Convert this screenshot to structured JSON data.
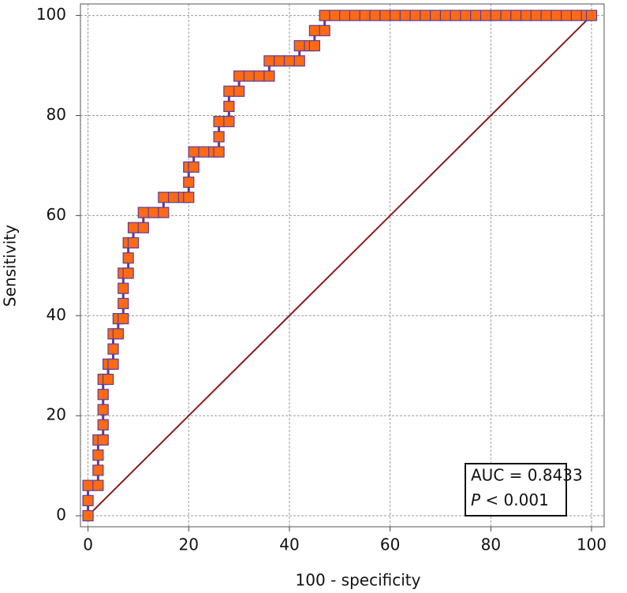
{
  "chart_data": {
    "type": "line",
    "xlabel": "100 - specificity",
    "ylabel": "Sensitivity",
    "xlim": [
      -1.5,
      102.5
    ],
    "ylim": [
      -2.2,
      102.3
    ],
    "xticks": [
      0,
      20,
      40,
      60,
      80,
      100
    ],
    "yticks": [
      0,
      20,
      40,
      60,
      80,
      100
    ],
    "grid": true,
    "annotation": {
      "auc": "AUC = 0.8433",
      "p_symbol": "P",
      "p_value": "< 0.001"
    },
    "reference_color": "#8b1a1a",
    "series": [
      {
        "color": "#5b3c9b",
        "marker_color": "#ff6a13",
        "x": [
          0,
          0,
          0,
          2,
          2,
          2,
          2,
          3,
          3,
          3,
          3,
          3,
          4,
          4,
          5,
          5,
          5,
          6,
          6,
          7,
          7,
          7,
          7,
          8,
          8,
          8,
          9,
          9,
          11,
          11,
          13,
          15,
          15,
          17,
          19,
          20,
          20,
          20,
          21,
          21,
          23,
          25,
          26,
          26,
          26,
          28,
          28,
          28,
          30,
          30,
          32,
          34,
          36,
          36,
          38,
          40,
          42,
          42,
          44,
          45,
          45,
          47,
          47,
          49,
          51,
          53,
          55,
          57,
          59,
          61,
          63,
          65,
          67,
          69,
          71,
          73,
          75,
          77,
          79,
          81,
          83,
          85,
          87,
          89,
          91,
          93,
          95,
          97,
          99,
          100
        ],
        "values": [
          0,
          3.03,
          6.06,
          6.06,
          9.09,
          12.12,
          15.15,
          15.15,
          18.18,
          21.21,
          24.24,
          27.27,
          27.27,
          30.3,
          30.3,
          33.33,
          36.36,
          36.36,
          39.39,
          39.39,
          42.42,
          45.45,
          48.48,
          48.48,
          51.52,
          54.55,
          54.55,
          57.58,
          57.58,
          60.61,
          60.61,
          60.61,
          63.64,
          63.64,
          63.64,
          63.64,
          66.67,
          69.7,
          69.7,
          72.73,
          72.73,
          72.73,
          72.73,
          75.76,
          78.79,
          78.79,
          81.82,
          84.85,
          84.85,
          87.88,
          87.88,
          87.88,
          87.88,
          90.91,
          90.91,
          90.91,
          90.91,
          93.94,
          93.94,
          93.94,
          96.97,
          96.97,
          100,
          100,
          100,
          100,
          100,
          100,
          100,
          100,
          100,
          100,
          100,
          100,
          100,
          100,
          100,
          100,
          100,
          100,
          100,
          100,
          100,
          100,
          100,
          100,
          100,
          100,
          100,
          100
        ]
      }
    ]
  }
}
